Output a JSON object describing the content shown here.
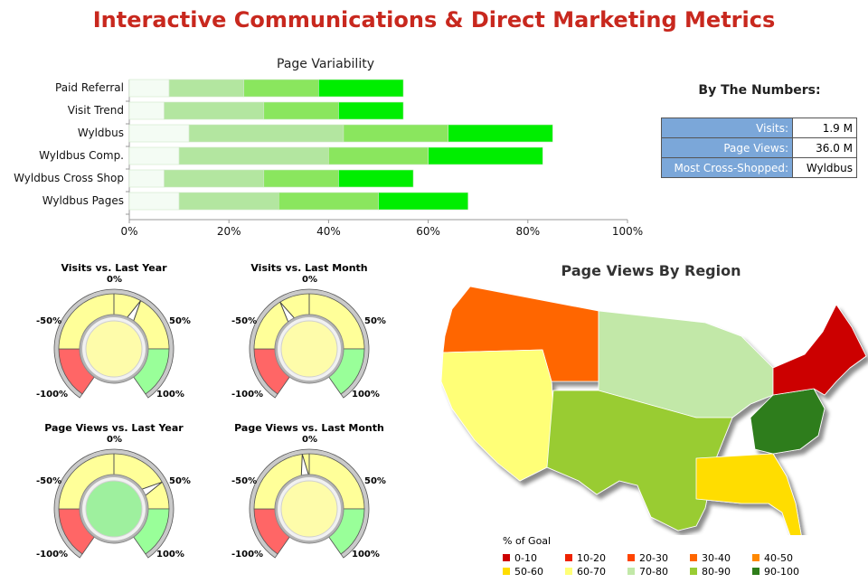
{
  "title": "Interactive Communications & Direct Marketing Metrics",
  "chart_data": [
    {
      "type": "bar",
      "orientation": "horizontal-stacked",
      "title": "Page Variability",
      "categories": [
        "Paid Referral",
        "Visit Trend",
        "Wyldbus",
        "Wyldbus Comp.",
        "Wyldbus Cross Shop",
        "Wyldbus Pages"
      ],
      "segments": [
        [
          8,
          23,
          38,
          55
        ],
        [
          7,
          27,
          42,
          55
        ],
        [
          12,
          43,
          64,
          85
        ],
        [
          10,
          40,
          60,
          83
        ],
        [
          7,
          27,
          42,
          57
        ],
        [
          10,
          30,
          50,
          68
        ]
      ],
      "segment_colors": [
        "#f4fcf4",
        "#b3e6a0",
        "#8ae65e",
        "#00ee00"
      ],
      "xlim": [
        0,
        100
      ],
      "ticks": [
        "0%",
        "20%",
        "40%",
        "60%",
        "80%",
        "100%"
      ]
    },
    {
      "type": "gauge",
      "title": "Visits vs. Last Year",
      "value": 0.2,
      "min": -100,
      "max": 100,
      "ticks": [
        "-100%",
        "-50%",
        "0%",
        "50%",
        "100%"
      ],
      "center_color": "#fefcaa"
    },
    {
      "type": "gauge",
      "title": "Visits vs. Last Month",
      "value": -0.22,
      "min": -100,
      "max": 100,
      "ticks": [
        "-100%",
        "-50%",
        "0%",
        "50%",
        "100%"
      ],
      "center_color": "#fefcaa"
    },
    {
      "type": "gauge",
      "title": "Page Views vs. Last Year",
      "value": 0.42,
      "min": -100,
      "max": 100,
      "ticks": [
        "-100%",
        "-50%",
        "0%",
        "50%",
        "100%"
      ],
      "center_color": "#9ef09e"
    },
    {
      "type": "gauge",
      "title": "Page Views vs. Last Month",
      "value": -0.05,
      "min": -100,
      "max": 100,
      "ticks": [
        "-100%",
        "-50%",
        "0%",
        "50%",
        "100%"
      ],
      "center_color": "#fefcaa"
    },
    {
      "type": "map",
      "title": "Page Views By Region",
      "legend_title": "% of Goal",
      "legend": [
        {
          "label": "0-10",
          "color": "#cc0000"
        },
        {
          "label": "10-20",
          "color": "#ee2200"
        },
        {
          "label": "20-30",
          "color": "#ff4400"
        },
        {
          "label": "30-40",
          "color": "#ff6600"
        },
        {
          "label": "40-50",
          "color": "#ff8800"
        },
        {
          "label": "50-60",
          "color": "#ffdd00"
        },
        {
          "label": "60-70",
          "color": "#ffff77"
        },
        {
          "label": "70-80",
          "color": "#c2e8a8"
        },
        {
          "label": "80-90",
          "color": "#99cc33"
        },
        {
          "label": "90-100",
          "color": "#2e7d1a"
        }
      ]
    }
  ],
  "numbers": {
    "title": "By The Numbers:",
    "rows": [
      {
        "label": "Visits:",
        "value": "1.9 M"
      },
      {
        "label": "Page Views:",
        "value": "36.0 M"
      },
      {
        "label": "Most Cross-Shopped:",
        "value": "Wyldbus"
      }
    ]
  }
}
